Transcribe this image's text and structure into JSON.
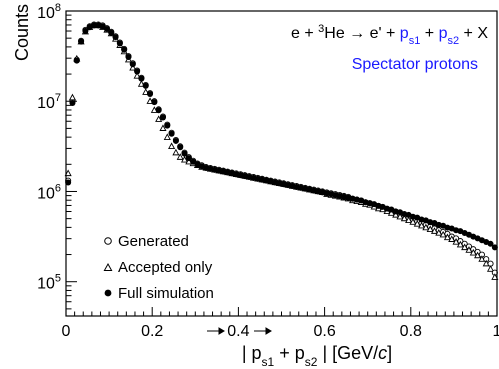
{
  "chart_data": {
    "type": "scatter",
    "ylabel": "Counts",
    "xlabel": {
      "prefix": "| ",
      "p1": "p",
      "s1": "s1",
      "plus": " + ",
      "p2": "p",
      "s2": "s2",
      "suffix_a": " | [GeV/",
      "c": "c",
      "suffix_b": "]"
    },
    "xlim": [
      0,
      1.0
    ],
    "ylim_log10": [
      4.62,
      8.0
    ],
    "log_y": true,
    "x_ticks": [
      {
        "value": 0,
        "label": "0"
      },
      {
        "value": 0.2,
        "label": "0.2"
      },
      {
        "value": 0.4,
        "label": "0.4"
      },
      {
        "value": 0.6,
        "label": "0.6"
      },
      {
        "value": 0.8,
        "label": "0.8"
      },
      {
        "value": 1.0,
        "label": "1"
      }
    ],
    "y_ticks": [
      {
        "exp": 5,
        "base": "10",
        "sup": "5"
      },
      {
        "exp": 6,
        "base": "10",
        "sup": "6"
      },
      {
        "exp": 7,
        "base": "10",
        "sup": "7"
      },
      {
        "exp": 8,
        "base": "10",
        "sup": "8"
      }
    ],
    "annotation": {
      "line1": {
        "a": "e + ",
        "sup": "3",
        "b": "He → e' + ",
        "p1": "p",
        "s1": "s1",
        "plus": " + ",
        "p2": "p",
        "s2": "s2",
        "c": " + X"
      },
      "line2": "Spectator protons",
      "accent": "#1a1aff"
    },
    "series": [
      {
        "name": "Generated",
        "marker": "open-circle"
      },
      {
        "name": "Accepted only",
        "marker": "open-triangle"
      },
      {
        "name": "Full simulation",
        "marker": "filled-circle"
      }
    ],
    "points": {
      "x": [
        0.005,
        0.015,
        0.025,
        0.035,
        0.045,
        0.055,
        0.065,
        0.075,
        0.085,
        0.095,
        0.105,
        0.115,
        0.125,
        0.135,
        0.145,
        0.155,
        0.165,
        0.175,
        0.185,
        0.195,
        0.205,
        0.215,
        0.225,
        0.235,
        0.245,
        0.255,
        0.265,
        0.275,
        0.285,
        0.295,
        0.305,
        0.315,
        0.325,
        0.335,
        0.345,
        0.355,
        0.365,
        0.375,
        0.385,
        0.395,
        0.405,
        0.415,
        0.425,
        0.435,
        0.445,
        0.455,
        0.465,
        0.475,
        0.485,
        0.495,
        0.505,
        0.515,
        0.525,
        0.535,
        0.545,
        0.555,
        0.565,
        0.575,
        0.585,
        0.595,
        0.605,
        0.615,
        0.625,
        0.635,
        0.645,
        0.655,
        0.665,
        0.675,
        0.685,
        0.695,
        0.705,
        0.715,
        0.725,
        0.735,
        0.745,
        0.755,
        0.765,
        0.775,
        0.785,
        0.795,
        0.805,
        0.815,
        0.825,
        0.835,
        0.845,
        0.855,
        0.865,
        0.875,
        0.885,
        0.895,
        0.905,
        0.915,
        0.925,
        0.935,
        0.945,
        0.955,
        0.965,
        0.975,
        0.985,
        0.995
      ],
      "full_log10": [
        6.1,
        6.98,
        7.45,
        7.66,
        7.78,
        7.82,
        7.84,
        7.84,
        7.83,
        7.8,
        7.76,
        7.71,
        7.64,
        7.57,
        7.49,
        7.41,
        7.33,
        7.25,
        7.17,
        7.08,
        6.99,
        6.9,
        6.82,
        6.73,
        6.64,
        6.56,
        6.49,
        6.42,
        6.37,
        6.33,
        6.3,
        6.28,
        6.26,
        6.25,
        6.24,
        6.23,
        6.22,
        6.21,
        6.2,
        6.19,
        6.18,
        6.17,
        6.16,
        6.15,
        6.14,
        6.13,
        6.12,
        6.11,
        6.1,
        6.09,
        6.08,
        6.07,
        6.06,
        6.05,
        6.04,
        6.03,
        6.02,
        6.01,
        6.0,
        5.99,
        5.98,
        5.97,
        5.96,
        5.95,
        5.94,
        5.93,
        5.92,
        5.91,
        5.9,
        5.88,
        5.87,
        5.86,
        5.84,
        5.83,
        5.81,
        5.8,
        5.78,
        5.77,
        5.75,
        5.74,
        5.72,
        5.71,
        5.69,
        5.68,
        5.66,
        5.65,
        5.63,
        5.62,
        5.6,
        5.59,
        5.57,
        5.56,
        5.54,
        5.52,
        5.5,
        5.48,
        5.46,
        5.44,
        5.42,
        5.38
      ],
      "generated_log10": [
        6.12,
        7.0,
        7.46,
        7.67,
        7.79,
        7.83,
        7.85,
        7.85,
        7.84,
        7.81,
        7.77,
        7.72,
        7.65,
        7.58,
        7.5,
        7.42,
        7.34,
        7.26,
        7.18,
        7.09,
        7.0,
        6.91,
        6.83,
        6.74,
        6.65,
        6.57,
        6.5,
        6.43,
        6.38,
        6.34,
        6.31,
        6.29,
        6.27,
        6.26,
        6.25,
        6.24,
        6.23,
        6.22,
        6.21,
        6.2,
        6.19,
        6.18,
        6.17,
        6.16,
        6.15,
        6.14,
        6.13,
        6.12,
        6.11,
        6.1,
        6.09,
        6.08,
        6.07,
        6.06,
        6.05,
        6.04,
        6.03,
        6.02,
        6.01,
        6.0,
        5.99,
        5.98,
        5.97,
        5.96,
        5.95,
        5.94,
        5.92,
        5.91,
        5.9,
        5.88,
        5.87,
        5.85,
        5.84,
        5.82,
        5.8,
        5.79,
        5.77,
        5.75,
        5.73,
        5.71,
        5.69,
        5.67,
        5.65,
        5.63,
        5.61,
        5.59,
        5.57,
        5.55,
        5.53,
        5.5,
        5.48,
        5.45,
        5.42,
        5.39,
        5.36,
        5.33,
        5.3,
        5.25,
        5.2,
        5.1
      ],
      "accepted_log10": [
        6.2,
        7.04,
        7.47,
        7.66,
        7.77,
        7.82,
        7.84,
        7.84,
        7.82,
        7.79,
        7.75,
        7.69,
        7.62,
        7.55,
        7.46,
        7.37,
        7.28,
        7.19,
        7.1,
        7.0,
        6.9,
        6.8,
        6.7,
        6.6,
        6.5,
        6.43,
        6.38,
        6.35,
        6.33,
        6.31,
        6.29,
        6.27,
        6.26,
        6.25,
        6.24,
        6.23,
        6.22,
        6.21,
        6.2,
        6.19,
        6.18,
        6.17,
        6.16,
        6.15,
        6.14,
        6.13,
        6.12,
        6.11,
        6.1,
        6.09,
        6.08,
        6.07,
        6.06,
        6.05,
        6.04,
        6.03,
        6.02,
        6.01,
        6.0,
        5.99,
        5.97,
        5.96,
        5.95,
        5.94,
        5.93,
        5.92,
        5.9,
        5.89,
        5.88,
        5.86,
        5.85,
        5.83,
        5.81,
        5.8,
        5.78,
        5.76,
        5.74,
        5.72,
        5.7,
        5.68,
        5.66,
        5.64,
        5.62,
        5.6,
        5.58,
        5.56,
        5.54,
        5.52,
        5.49,
        5.47,
        5.44,
        5.41,
        5.38,
        5.35,
        5.32,
        5.29,
        5.25,
        5.2,
        5.14,
        5.05
      ]
    }
  }
}
